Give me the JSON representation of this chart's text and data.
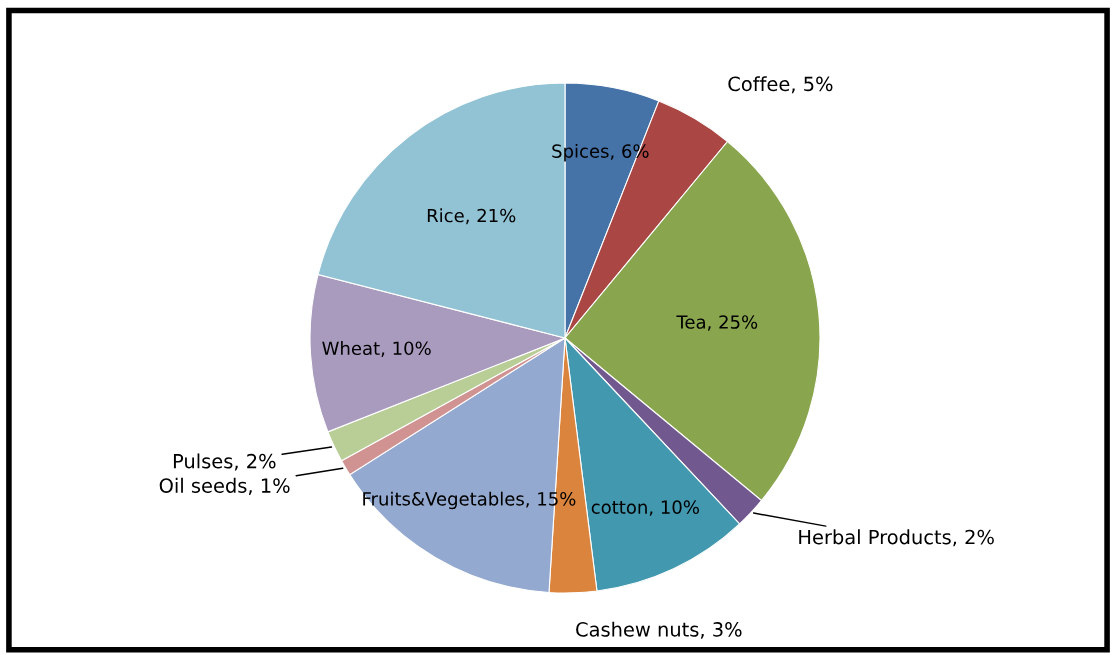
{
  "chart_data": {
    "type": "pie",
    "categories": [
      "Spices",
      "Coffee",
      "Tea",
      "Herbal Products",
      "cotton",
      "Cashew nuts",
      "Fruits&Vegetables",
      "Oil seeds",
      "Pulses",
      "Wheat",
      "Rice"
    ],
    "values": [
      6,
      5,
      25,
      2,
      10,
      3,
      15,
      1,
      2,
      10,
      21
    ],
    "value_labels": [
      "6%",
      "5%",
      "25%",
      "2%",
      "10%",
      "3%",
      "15%",
      "1%",
      "2%",
      "10%",
      "21%"
    ],
    "colors": [
      "#4572a7",
      "#aa4643",
      "#89a54e",
      "#71588f",
      "#4198af",
      "#db843d",
      "#93a9cf",
      "#d19392",
      "#b9cd96",
      "#a99bbd",
      "#92c3d5"
    ],
    "legend": false
  }
}
